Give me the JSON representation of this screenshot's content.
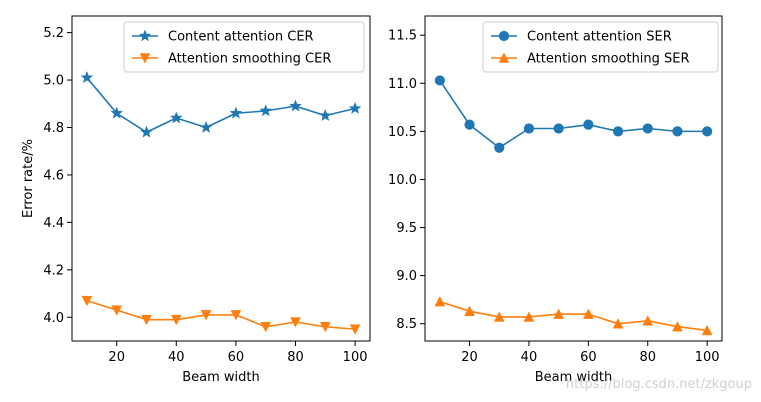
{
  "chart_data": [
    {
      "type": "line",
      "xlabel": "Beam width",
      "ylabel": "Error rate/%",
      "xlim": [
        5,
        105
      ],
      "ylim": [
        3.9,
        5.27
      ],
      "xticks": [
        20,
        40,
        60,
        80,
        100
      ],
      "yticks": [
        4.0,
        4.2,
        4.4,
        4.6,
        4.8,
        5.0,
        5.2
      ],
      "ytick_labels": [
        "4.0",
        "4.2",
        "4.4",
        "4.6",
        "4.8",
        "5.0",
        "5.2"
      ],
      "x": [
        10,
        20,
        30,
        40,
        50,
        60,
        70,
        80,
        90,
        100
      ],
      "legend_position": "top-right",
      "grid": false,
      "series": [
        {
          "name": "Content attention CER",
          "color": "#1f77b4",
          "marker": "star",
          "values": [
            5.01,
            4.86,
            4.78,
            4.84,
            4.8,
            4.86,
            4.87,
            4.89,
            4.85,
            4.88
          ]
        },
        {
          "name": "Attention smoothing CER",
          "color": "#ff7f0e",
          "marker": "triangle-down",
          "values": [
            4.07,
            4.03,
            3.99,
            3.99,
            4.01,
            4.01,
            3.96,
            3.98,
            3.96,
            3.95
          ]
        }
      ]
    },
    {
      "type": "line",
      "xlabel": "Beam width",
      "ylabel": "",
      "xlim": [
        5,
        105
      ],
      "ylim": [
        8.32,
        11.7
      ],
      "xticks": [
        20,
        40,
        60,
        80,
        100
      ],
      "yticks": [
        8.5,
        9.0,
        9.5,
        10.0,
        10.5,
        11.0,
        11.5
      ],
      "ytick_labels": [
        "8.5",
        "9.0",
        "9.5",
        "10.0",
        "10.5",
        "11.0",
        "11.5"
      ],
      "x": [
        10,
        20,
        30,
        40,
        50,
        60,
        70,
        80,
        90,
        100
      ],
      "legend_position": "top-right",
      "grid": false,
      "series": [
        {
          "name": "Content attention SER",
          "color": "#1f77b4",
          "marker": "circle",
          "values": [
            11.03,
            10.57,
            10.33,
            10.53,
            10.53,
            10.57,
            10.5,
            10.53,
            10.5,
            10.5
          ]
        },
        {
          "name": "Attention smoothing SER",
          "color": "#ff7f0e",
          "marker": "triangle-up",
          "values": [
            8.73,
            8.63,
            8.57,
            8.57,
            8.6,
            8.6,
            8.5,
            8.53,
            8.47,
            8.43
          ]
        }
      ]
    }
  ],
  "watermark": "https://blog.csdn.net/zkgoup"
}
